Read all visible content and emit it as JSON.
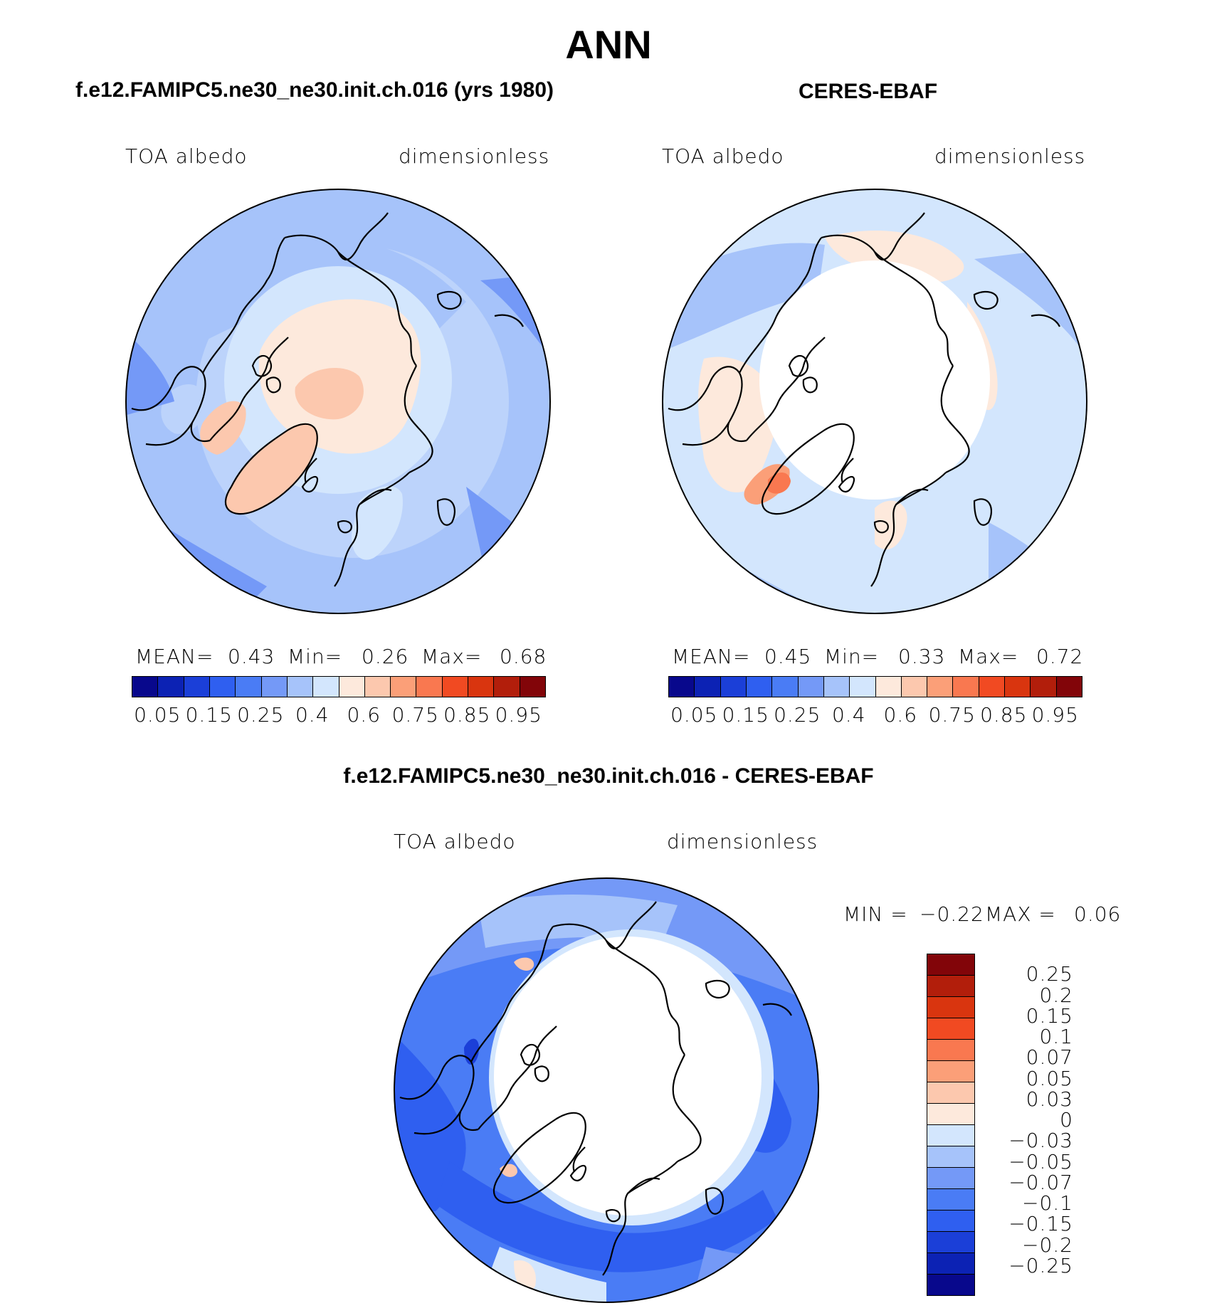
{
  "page": {
    "title": "ANN"
  },
  "panels": {
    "model": {
      "title": "f.e12.FAMIPC5.ne30_ne30.init.ch.016 (yrs 1980)",
      "variable": "TOA albedo",
      "units": "dimensionless",
      "mean_label": "MEAN=",
      "mean_value": "0.43",
      "min_label": "Min=",
      "min_value": "0.26",
      "max_label": "Max=",
      "max_value": "0.68"
    },
    "obs": {
      "title": "CERES-EBAF",
      "variable": "TOA albedo",
      "units": "dimensionless",
      "mean_label": "MEAN=",
      "mean_value": "0.45",
      "min_label": "Min=",
      "min_value": "0.33",
      "max_label": "Max=",
      "max_value": "0.72"
    },
    "diff": {
      "title": "f.e12.FAMIPC5.ne30_ne30.init.ch.016 - CERES-EBAF",
      "variable": "TOA albedo",
      "units": "dimensionless",
      "min_label": "MIN =",
      "min_value": "−0.22",
      "max_label": "MAX =",
      "max_value": "0.06"
    }
  },
  "chart_data": [
    {
      "type": "heatmap",
      "projection": "north-polar-stereographic",
      "title": "f.e12.FAMIPC5.ne30_ne30.init.ch.016 (yrs 1980)",
      "variable": "TOA albedo",
      "units": "dimensionless",
      "mean": 0.43,
      "min": 0.26,
      "max": 0.68,
      "colorbar_labels": [
        "0.05",
        "0.15",
        "0.25",
        "0.4",
        "0.6",
        "0.75",
        "0.85",
        "0.95"
      ],
      "colorbar_colors": [
        "#08088c",
        "#0c22b4",
        "#1b3fd8",
        "#2f5ff0",
        "#4a7cf5",
        "#7499f7",
        "#a6c3fa",
        "#d3e6fd",
        "#fde9dc",
        "#fcc8ae",
        "#fb9f78",
        "#f97850",
        "#f14a22",
        "#d9350f",
        "#b21e0b",
        "#820509"
      ]
    },
    {
      "type": "heatmap",
      "projection": "north-polar-stereographic",
      "title": "CERES-EBAF",
      "variable": "TOA albedo",
      "units": "dimensionless",
      "mean": 0.45,
      "min": 0.33,
      "max": 0.72,
      "colorbar_labels": [
        "0.05",
        "0.15",
        "0.25",
        "0.4",
        "0.6",
        "0.75",
        "0.85",
        "0.95"
      ],
      "colorbar_colors": [
        "#08088c",
        "#0c22b4",
        "#1b3fd8",
        "#2f5ff0",
        "#4a7cf5",
        "#7499f7",
        "#a6c3fa",
        "#d3e6fd",
        "#fde9dc",
        "#fcc8ae",
        "#fb9f78",
        "#f97850",
        "#f14a22",
        "#d9350f",
        "#b21e0b",
        "#820509"
      ]
    },
    {
      "type": "heatmap",
      "projection": "north-polar-stereographic",
      "title": "f.e12.FAMIPC5.ne30_ne30.init.ch.016 - CERES-EBAF",
      "variable": "TOA albedo",
      "units": "dimensionless",
      "min": -0.22,
      "max": 0.06,
      "colorbar_labels": [
        "0.25",
        "0.2",
        "0.15",
        "0.1",
        "0.07",
        "0.05",
        "0.03",
        "0",
        "−0.03",
        "−0.05",
        "−0.07",
        "−0.1",
        "−0.15",
        "−0.2",
        "−0.25"
      ],
      "colorbar_colors": [
        "#820509",
        "#b21e0b",
        "#d9350f",
        "#f14a22",
        "#f97850",
        "#fb9f78",
        "#fcc8ae",
        "#fde9dc",
        "#d3e6fd",
        "#a6c3fa",
        "#7499f7",
        "#4a7cf5",
        "#2f5ff0",
        "#1b3fd8",
        "#0c22b4",
        "#08088c"
      ]
    }
  ]
}
